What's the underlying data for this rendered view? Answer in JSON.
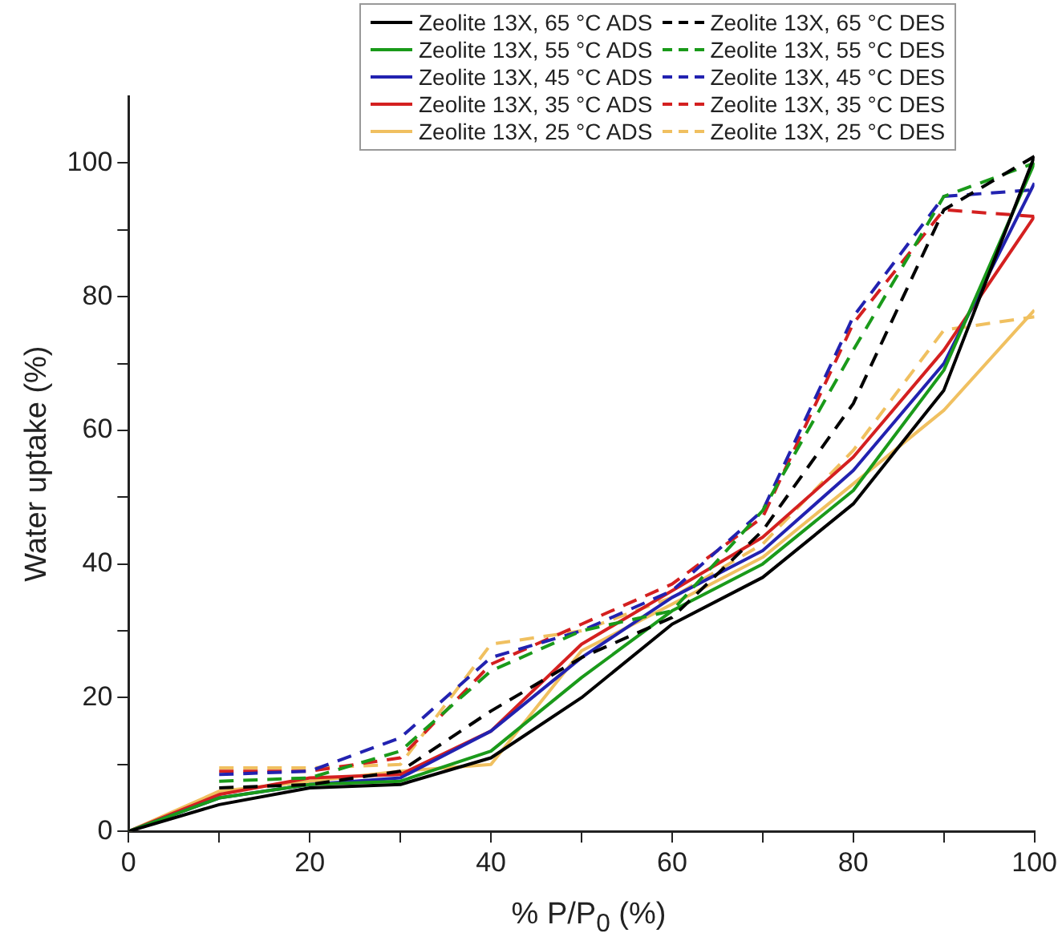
{
  "chart_data": {
    "type": "line",
    "xlabel": "% P/P$_{0}$ (%)",
    "ylabel": "Water uptake (%)",
    "xlim": [
      0,
      100
    ],
    "ylim": [
      0,
      110
    ],
    "xticks": [
      0,
      {
        "value": 10,
        "label": null
      },
      20,
      {
        "value": 30,
        "label": null
      },
      40,
      {
        "value": 50,
        "label": null
      },
      60,
      {
        "value": 70,
        "label": null
      },
      80,
      {
        "value": 90,
        "label": null
      },
      100
    ],
    "yticks": [
      0,
      {
        "value": 10,
        "label": null
      },
      20,
      {
        "value": 30,
        "label": null
      },
      40,
      {
        "value": 50,
        "label": null
      },
      60,
      {
        "value": 70,
        "label": null
      },
      80,
      {
        "value": 90,
        "label": null
      },
      100
    ],
    "grid": false,
    "legend": "top",
    "marker": "none",
    "series": [
      {
        "name": "Zeolite 13X, 65 °C ADS",
        "color": "#000000",
        "line_style": "solid",
        "x": [
          0,
          10,
          20,
          30,
          40,
          50,
          60,
          70,
          80,
          90,
          100
        ],
        "values": [
          0,
          4,
          6.5,
          7,
          11,
          20,
          31,
          38,
          49,
          66,
          101
        ]
      },
      {
        "name": "Zeolite 13X, 65 °C DES",
        "color": "#000000",
        "line_style": "dashed",
        "x": [
          10,
          20,
          30,
          40,
          50,
          60,
          70,
          80,
          90,
          100
        ],
        "values": [
          6.5,
          7,
          9,
          18,
          26,
          32,
          45,
          64,
          93,
          101
        ]
      },
      {
        "name": "Zeolite 13X, 55 °C ADS",
        "color": "#1a9a1a",
        "line_style": "solid",
        "x": [
          0,
          10,
          20,
          30,
          40,
          50,
          60,
          70,
          80,
          90,
          100
        ],
        "values": [
          0,
          5,
          7,
          7.5,
          12,
          23,
          33,
          40,
          51,
          69,
          100
        ]
      },
      {
        "name": "Zeolite 13X, 55 °C DES",
        "color": "#1a9a1a",
        "line_style": "dashed",
        "x": [
          10,
          20,
          30,
          40,
          50,
          60,
          70,
          80,
          90,
          100
        ],
        "values": [
          7.5,
          8,
          12,
          24,
          30,
          33,
          48,
          72,
          95,
          100
        ]
      },
      {
        "name": "Zeolite 13X, 45 °C ADS",
        "color": "#2222b0",
        "line_style": "solid",
        "x": [
          0,
          10,
          20,
          30,
          40,
          50,
          60,
          70,
          80,
          90,
          100
        ],
        "values": [
          0,
          5,
          7,
          8,
          15,
          26,
          35,
          42,
          54,
          70,
          97
        ]
      },
      {
        "name": "Zeolite 13X, 45 °C DES",
        "color": "#2222b0",
        "line_style": "dashed",
        "x": [
          10,
          20,
          30,
          40,
          50,
          60,
          70,
          80,
          90,
          100
        ],
        "values": [
          8.5,
          9,
          14,
          26,
          30,
          36,
          48,
          77,
          95,
          96
        ]
      },
      {
        "name": "Zeolite 13X, 35 °C ADS",
        "color": "#d42020",
        "line_style": "solid",
        "x": [
          0,
          10,
          20,
          30,
          40,
          50,
          60,
          70,
          80,
          90,
          100
        ],
        "values": [
          0,
          5.5,
          8,
          8.5,
          15,
          28,
          36,
          44,
          56,
          72,
          92
        ]
      },
      {
        "name": "Zeolite 13X, 35 °C DES",
        "color": "#d42020",
        "line_style": "dashed",
        "x": [
          10,
          20,
          30,
          40,
          50,
          60,
          70,
          80,
          90,
          100
        ],
        "values": [
          9,
          9,
          11,
          25,
          31,
          37,
          47,
          76,
          93,
          92
        ]
      },
      {
        "name": "Zeolite 13X, 25 °C ADS",
        "color": "#f0c060",
        "line_style": "solid",
        "x": [
          0,
          10,
          20,
          30,
          40,
          50,
          60,
          70,
          80,
          90,
          100
        ],
        "values": [
          0,
          6,
          7.5,
          9,
          10,
          27,
          34,
          41,
          52,
          63,
          78
        ]
      },
      {
        "name": "Zeolite 13X, 25 °C DES",
        "color": "#f0c060",
        "line_style": "dashed",
        "x": [
          10,
          20,
          30,
          40,
          50,
          60,
          70,
          80,
          90,
          100
        ],
        "values": [
          9.5,
          9.5,
          10,
          28,
          30,
          35,
          43,
          57,
          75,
          77
        ]
      }
    ]
  }
}
